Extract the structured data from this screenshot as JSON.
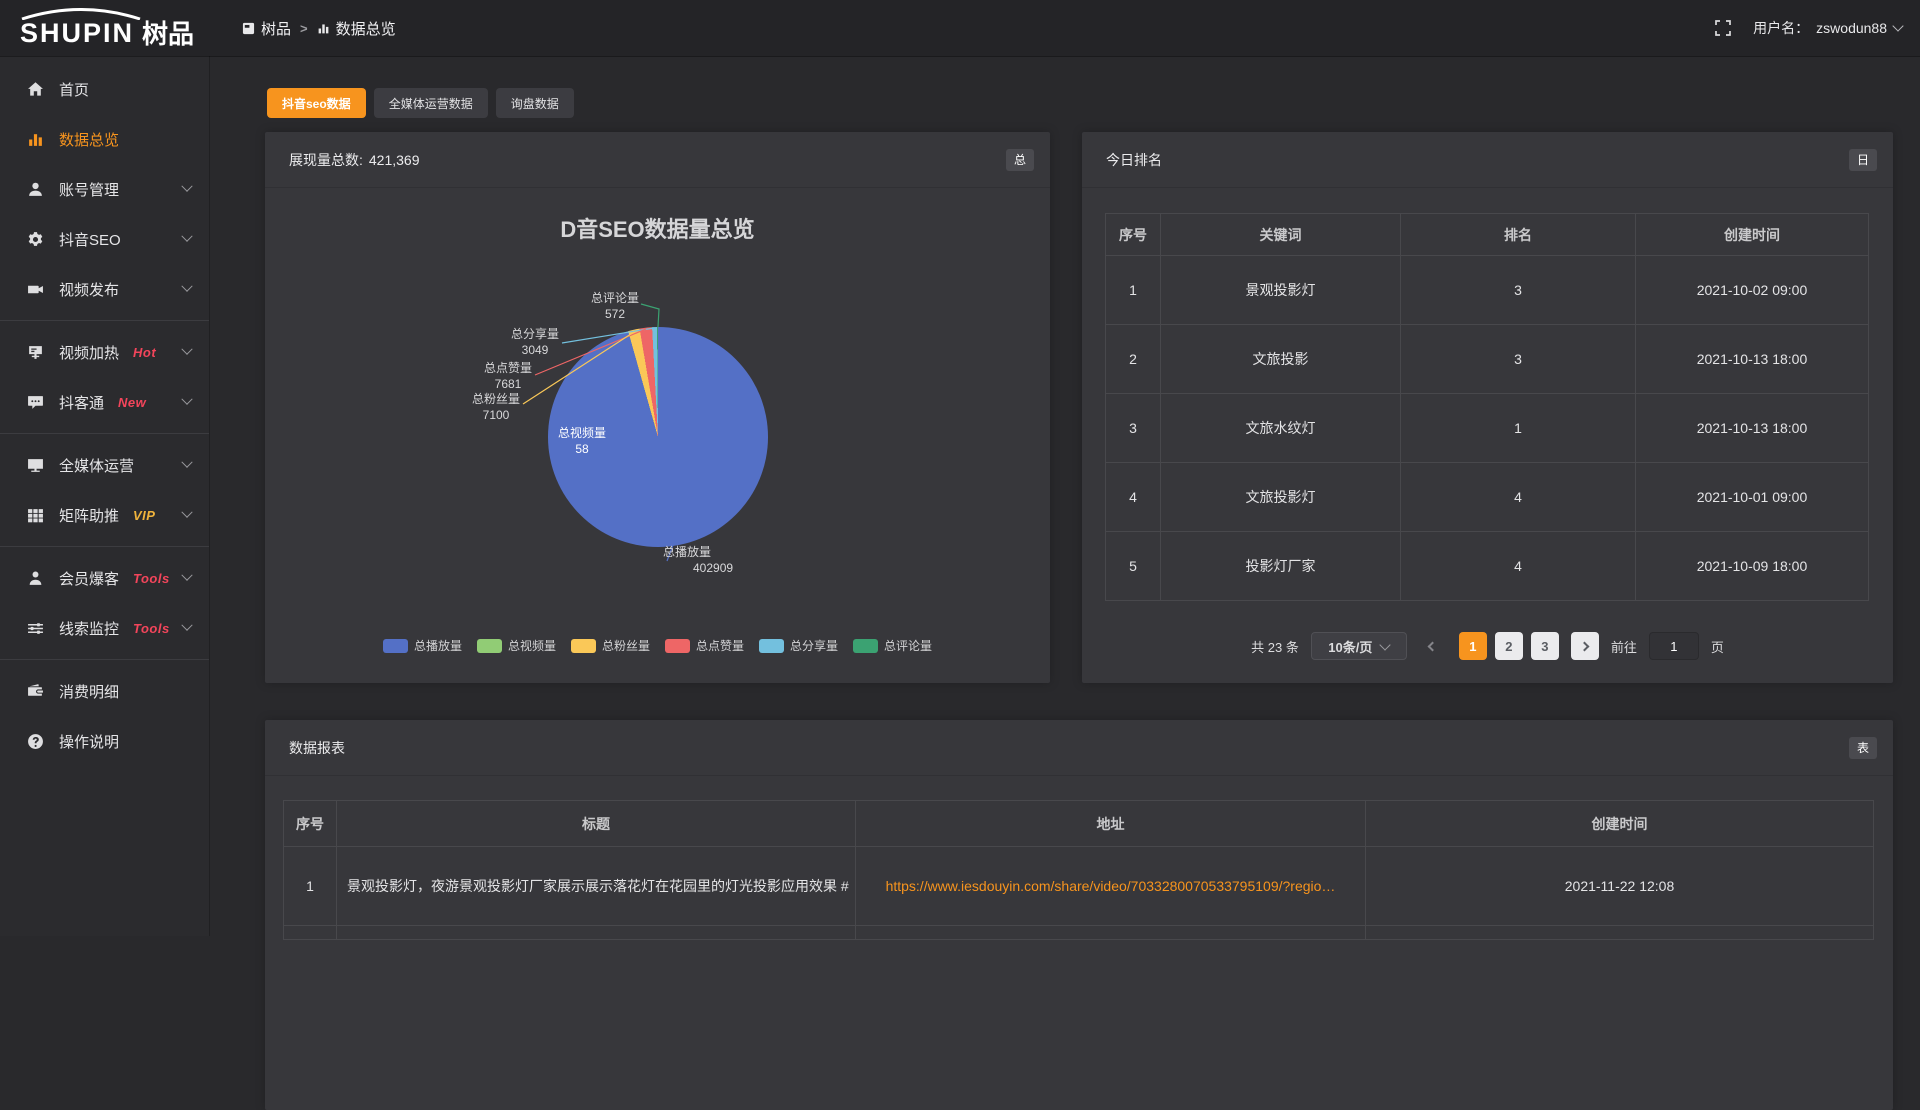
{
  "header": {
    "logo_en": "SHUPIN",
    "logo_cn": "树品",
    "breadcrumb": [
      {
        "label": "树品"
      },
      {
        "label": "数据总览"
      }
    ],
    "breadcrumb_separator": ">",
    "username_label": "用户名：",
    "username": "zswodun88"
  },
  "sidebar": {
    "items": [
      {
        "label": "首页",
        "icon": "home",
        "active": false,
        "expandable": false,
        "badge": "",
        "divider_after": false
      },
      {
        "label": "数据总览",
        "icon": "chart",
        "active": true,
        "expandable": false,
        "badge": "",
        "divider_after": false
      },
      {
        "label": "账号管理",
        "icon": "user",
        "active": false,
        "expandable": true,
        "badge": "",
        "divider_after": false
      },
      {
        "label": "抖音SEO",
        "icon": "gear",
        "active": false,
        "expandable": true,
        "badge": "",
        "divider_after": false
      },
      {
        "label": "视频发布",
        "icon": "camera",
        "active": false,
        "expandable": true,
        "badge": "",
        "divider_after": true
      },
      {
        "label": "视频加热",
        "icon": "billboard",
        "active": false,
        "expandable": true,
        "badge": "Hot",
        "badge_color": "#f3455b",
        "divider_after": false
      },
      {
        "label": "抖客通",
        "icon": "chat",
        "active": false,
        "expandable": true,
        "badge": "New",
        "badge_color": "#f3455b",
        "divider_after": true
      },
      {
        "label": "全媒体运营",
        "icon": "monitor",
        "active": false,
        "expandable": true,
        "badge": "",
        "divider_after": false
      },
      {
        "label": "矩阵助推",
        "icon": "grid",
        "active": false,
        "expandable": true,
        "badge": "VIP",
        "badge_color": "#f0b43c",
        "divider_after": true
      },
      {
        "label": "会员爆客",
        "icon": "person",
        "active": false,
        "expandable": true,
        "badge": "Tools",
        "badge_color": "#f3455b",
        "divider_after": false
      },
      {
        "label": "线索监控",
        "icon": "sliders",
        "active": false,
        "expandable": true,
        "badge": "Tools",
        "badge_color": "#f3455b",
        "divider_after": true
      },
      {
        "label": "消费明细",
        "icon": "wallet",
        "active": false,
        "expandable": false,
        "badge": "",
        "divider_after": false
      },
      {
        "label": "操作说明",
        "icon": "help",
        "active": false,
        "expandable": false,
        "badge": "",
        "divider_after": false
      }
    ]
  },
  "tabs": [
    {
      "label": "抖音seo数据",
      "active": true
    },
    {
      "label": "全媒体运营数据",
      "active": false
    },
    {
      "label": "询盘数据",
      "active": false
    }
  ],
  "chart_panel": {
    "summary_label": "展现量总数:",
    "summary_value": "421,369",
    "corner_button": "总"
  },
  "chart_data": {
    "type": "pie",
    "title": "D音SEO数据量总览",
    "total": 421369,
    "legend_position": "bottom",
    "series": [
      {
        "name": "总播放量",
        "value": 402909,
        "color": "#5470c6"
      },
      {
        "name": "总视频量",
        "value": 58,
        "color": "#91cc75"
      },
      {
        "name": "总粉丝量",
        "value": 7100,
        "color": "#fac858"
      },
      {
        "name": "总点赞量",
        "value": 7681,
        "color": "#ee6666"
      },
      {
        "name": "总分享量",
        "value": 3049,
        "color": "#73c0de"
      },
      {
        "name": "总评论量",
        "value": 572,
        "color": "#3ba272"
      }
    ],
    "legend": [
      "总播放量",
      "总视频量",
      "总粉丝量",
      "总点赞量",
      "总分享量",
      "总评论量"
    ]
  },
  "ranking_panel": {
    "title": "今日排名",
    "corner_button": "日",
    "columns": [
      "序号",
      "关键词",
      "排名",
      "创建时间"
    ],
    "rows": [
      [
        "1",
        "景观投影灯",
        "3",
        "2021-10-02 09:00"
      ],
      [
        "2",
        "文旅投影",
        "3",
        "2021-10-13 18:00"
      ],
      [
        "3",
        "文旅水纹灯",
        "1",
        "2021-10-13 18:00"
      ],
      [
        "4",
        "文旅投影灯",
        "4",
        "2021-10-01 09:00"
      ],
      [
        "5",
        "投影灯厂家",
        "4",
        "2021-10-09 18:00"
      ]
    ],
    "pagination": {
      "total_label": "共 23 条",
      "page_size": "10条/页",
      "pages": [
        "1",
        "2",
        "3"
      ],
      "active_page": "1",
      "goto_label": "前往",
      "goto_value": "1",
      "page_label": "页"
    }
  },
  "report_panel": {
    "title": "数据报表",
    "corner_button": "表",
    "columns": [
      "序号",
      "标题",
      "地址",
      "创建时间"
    ],
    "rows": [
      {
        "index": "1",
        "title": "景观投影灯，夜游景观投影灯厂家展示展示落花灯在花园里的灯光投影应用效果 #",
        "url": "https://www.iesdouyin.com/share/video/7033280070533795109/?regio…",
        "time": "2021-11-22 12:08"
      }
    ]
  },
  "colors": {
    "accent": "#f7941e",
    "hot_badge": "#f3455b",
    "vip_badge": "#f0b43c",
    "link": "#f7941e"
  }
}
